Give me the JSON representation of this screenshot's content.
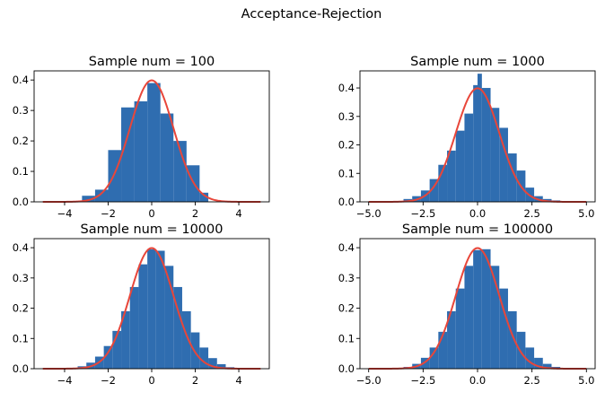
{
  "figure": {
    "suptitle": "Acceptance-Rejection",
    "bar_color": "#2f6db0",
    "curve_color": "#e8463a"
  },
  "chart_data": [
    {
      "type": "bar",
      "title": "Sample num = 100",
      "xlabel": "",
      "ylabel": "",
      "xlim": [
        -5.4,
        5.4
      ],
      "ylim": [
        0,
        0.43
      ],
      "xticks": [
        -4,
        -2,
        0,
        2,
        4
      ],
      "xtick_labels": [
        "−4",
        "−2",
        "0",
        "2",
        "4"
      ],
      "yticks": [
        0.0,
        0.1,
        0.2,
        0.3,
        0.4
      ],
      "ytick_labels": [
        "0.0",
        "0.1",
        "0.2",
        "0.3",
        "0.4"
      ],
      "grid": false,
      "histogram": {
        "bin_edges": [
          -3.2,
          -2.6,
          -2.0,
          -1.4,
          -0.8,
          -0.2,
          0.4,
          1.0,
          1.6,
          2.2,
          2.6
        ],
        "density": [
          0.02,
          0.04,
          0.17,
          0.31,
          0.33,
          0.39,
          0.29,
          0.2,
          0.12,
          0.03
        ]
      },
      "curve": {
        "name": "",
        "x_range": [
          -5,
          5
        ],
        "function": "standard normal pdf",
        "peak": 0.399
      }
    },
    {
      "type": "bar",
      "title": "Sample num = 1000",
      "xlabel": "",
      "ylabel": "",
      "xlim": [
        -5.4,
        5.4
      ],
      "ylim": [
        0,
        0.46
      ],
      "xticks": [
        -5.0,
        -2.5,
        0.0,
        2.5,
        5.0
      ],
      "xtick_labels": [
        "−5.0",
        "−2.5",
        "0.0",
        "2.5",
        "5.0"
      ],
      "yticks": [
        0.0,
        0.1,
        0.2,
        0.3,
        0.4
      ],
      "ytick_labels": [
        "0.0",
        "0.1",
        "0.2",
        "0.3",
        "0.4"
      ],
      "grid": false,
      "histogram": {
        "bin_edges": [
          -3.4,
          -3.0,
          -2.6,
          -2.2,
          -1.8,
          -1.4,
          -1.0,
          -0.6,
          -0.2,
          0.0,
          0.2,
          0.6,
          1.0,
          1.4,
          1.8,
          2.2,
          2.6,
          3.0,
          3.4,
          3.8
        ],
        "density": [
          0.01,
          0.02,
          0.04,
          0.08,
          0.13,
          0.18,
          0.25,
          0.31,
          0.41,
          0.45,
          0.4,
          0.33,
          0.26,
          0.17,
          0.11,
          0.05,
          0.02,
          0.01,
          0.005
        ]
      },
      "curve": {
        "name": "",
        "x_range": [
          -5,
          5
        ],
        "function": "standard normal pdf",
        "peak": 0.399
      }
    },
    {
      "type": "bar",
      "title": "Sample num = 10000",
      "xlabel": "",
      "ylabel": "",
      "xlim": [
        -5.4,
        5.4
      ],
      "ylim": [
        0,
        0.43
      ],
      "xticks": [
        -4,
        -2,
        0,
        2,
        4
      ],
      "xtick_labels": [
        "−4",
        "−2",
        "0",
        "2",
        "4"
      ],
      "yticks": [
        0.0,
        0.1,
        0.2,
        0.3,
        0.4
      ],
      "ytick_labels": [
        "0.0",
        "0.1",
        "0.2",
        "0.3",
        "0.4"
      ],
      "grid": false,
      "histogram": {
        "bin_edges": [
          -3.8,
          -3.4,
          -3.0,
          -2.6,
          -2.2,
          -1.8,
          -1.4,
          -1.0,
          -0.6,
          -0.2,
          0.2,
          0.6,
          1.0,
          1.4,
          1.8,
          2.2,
          2.6,
          3.0,
          3.4,
          3.8
        ],
        "density": [
          0.003,
          0.008,
          0.02,
          0.04,
          0.075,
          0.125,
          0.19,
          0.27,
          0.345,
          0.395,
          0.39,
          0.34,
          0.27,
          0.19,
          0.12,
          0.07,
          0.035,
          0.015,
          0.005
        ]
      },
      "curve": {
        "name": "",
        "x_range": [
          -5,
          5
        ],
        "function": "standard normal pdf",
        "peak": 0.399
      }
    },
    {
      "type": "bar",
      "title": "Sample num = 100000",
      "xlabel": "",
      "ylabel": "",
      "xlim": [
        -5.4,
        5.4
      ],
      "ylim": [
        0,
        0.43
      ],
      "xticks": [
        -5.0,
        -2.5,
        0.0,
        2.5,
        5.0
      ],
      "xtick_labels": [
        "−5.0",
        "−2.5",
        "0.0",
        "2.5",
        "5.0"
      ],
      "yticks": [
        0.0,
        0.1,
        0.2,
        0.3,
        0.4
      ],
      "ytick_labels": [
        "0.0",
        "0.1",
        "0.2",
        "0.3",
        "0.4"
      ],
      "grid": false,
      "histogram": {
        "bin_edges": [
          -4.2,
          -3.8,
          -3.4,
          -3.0,
          -2.6,
          -2.2,
          -1.8,
          -1.4,
          -1.0,
          -0.6,
          -0.2,
          0.2,
          0.6,
          1.0,
          1.4,
          1.8,
          2.2,
          2.6,
          3.0,
          3.4,
          3.8,
          4.2
        ],
        "density": [
          0.001,
          0.002,
          0.006,
          0.016,
          0.036,
          0.07,
          0.122,
          0.19,
          0.265,
          0.34,
          0.392,
          0.395,
          0.34,
          0.265,
          0.19,
          0.122,
          0.07,
          0.036,
          0.016,
          0.006,
          0.002
        ]
      },
      "curve": {
        "name": "",
        "x_range": [
          -5,
          5
        ],
        "function": "standard normal pdf",
        "peak": 0.399
      }
    }
  ]
}
